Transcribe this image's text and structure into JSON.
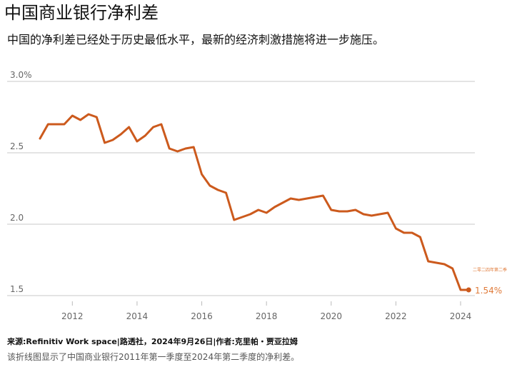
{
  "header": {
    "title": "中国商业银行净利差",
    "subtitle": "中国的净利差已经处于历史最低水平，最新的经济刺激措施将进一步施压。"
  },
  "footer": {
    "source": "来源:Refinitiv Work space|路透社，2024年9月26日|作者:克里帕・贾亚拉姆",
    "caption": "该折线图显示了中国商业银行2011年第一季度至2024年第二季度的净利差。"
  },
  "colors": {
    "line": "#cc5a1d",
    "end_label": "#e07b3a",
    "grid": "#c8c8c8",
    "tick_text": "#666666"
  },
  "chart_data": {
    "type": "line",
    "title": "中国商业银行净利差",
    "xlabel": "",
    "ylabel": "",
    "xlim": [
      2010.5,
      2024.5
    ],
    "ylim": [
      1.45,
      3.0
    ],
    "y_ticks": [
      3.0,
      2.5,
      2.0,
      1.5
    ],
    "y_tick_labels": [
      "3.0%",
      "2.5",
      "2.0",
      "1.5"
    ],
    "x_ticks": [
      2012,
      2014,
      2016,
      2018,
      2020,
      2022,
      2024
    ],
    "x_tick_labels": [
      "2012",
      "2014",
      "2016",
      "2018",
      "2020",
      "2022",
      "2024"
    ],
    "grid": "horizontal",
    "series": [
      {
        "x": [
          2011.0,
          2011.25,
          2011.5,
          2011.75,
          2012.0,
          2012.25,
          2012.5,
          2012.75,
          2013.0,
          2013.25,
          2013.5,
          2013.75,
          2014.0,
          2014.25,
          2014.5,
          2014.75,
          2015.0,
          2015.25,
          2015.5,
          2015.75,
          2016.0,
          2016.25,
          2016.5,
          2016.75,
          2017.0,
          2017.25,
          2017.5,
          2017.75,
          2018.0,
          2018.25,
          2018.5,
          2018.75,
          2019.0,
          2019.25,
          2019.5,
          2019.75,
          2020.0,
          2020.25,
          2020.5,
          2020.75,
          2021.0,
          2021.25,
          2021.5,
          2021.75,
          2022.0,
          2022.25,
          2022.5,
          2022.75,
          2023.0,
          2023.25,
          2023.5,
          2023.75,
          2024.0,
          2024.25
        ],
        "values": [
          2.6,
          2.7,
          2.7,
          2.7,
          2.76,
          2.73,
          2.77,
          2.75,
          2.57,
          2.59,
          2.63,
          2.68,
          2.58,
          2.62,
          2.68,
          2.7,
          2.53,
          2.51,
          2.53,
          2.54,
          2.35,
          2.27,
          2.24,
          2.22,
          2.03,
          2.05,
          2.07,
          2.1,
          2.08,
          2.12,
          2.15,
          2.18,
          2.17,
          2.18,
          2.19,
          2.2,
          2.1,
          2.09,
          2.09,
          2.1,
          2.07,
          2.06,
          2.07,
          2.08,
          1.97,
          1.94,
          1.94,
          1.91,
          1.74,
          1.73,
          1.72,
          1.69,
          1.54,
          1.54
        ]
      }
    ],
    "annotations": [
      {
        "text": "二零二四年第二季",
        "x": 2024.25,
        "y": 1.54
      },
      {
        "text": "1.54%",
        "x": 2024.25,
        "y": 1.54
      }
    ]
  }
}
